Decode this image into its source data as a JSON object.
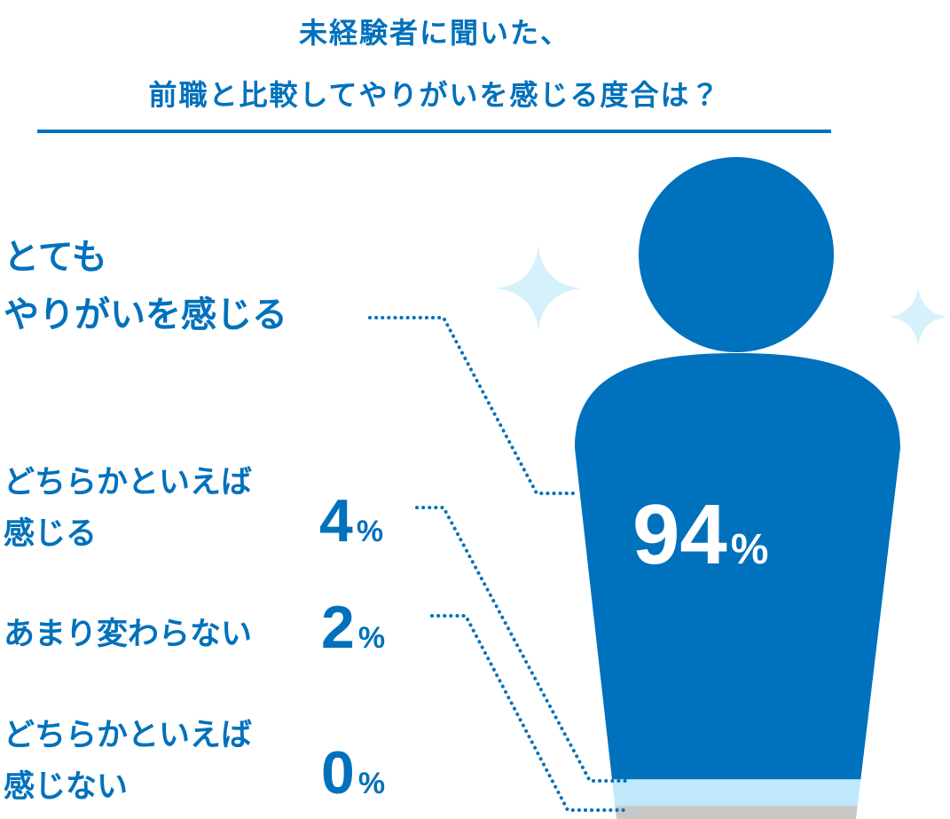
{
  "chart_data": {
    "type": "pictogram",
    "title": "未経験者に聞いた、\n前職と比較してやりがいを感じる度合は？",
    "categories": [
      "とても\nやりがいを感じる",
      "どちらかといえば\n感じる",
      "あまり変わらない",
      "どちらかといえば\n感じない"
    ],
    "values": [
      94,
      4,
      2,
      0
    ],
    "value_labels": [
      "94%",
      "4%",
      "2%",
      "0%"
    ],
    "colors": [
      "#0071bc",
      "#bfe9fb",
      "#c8c8c8",
      null
    ]
  }
}
